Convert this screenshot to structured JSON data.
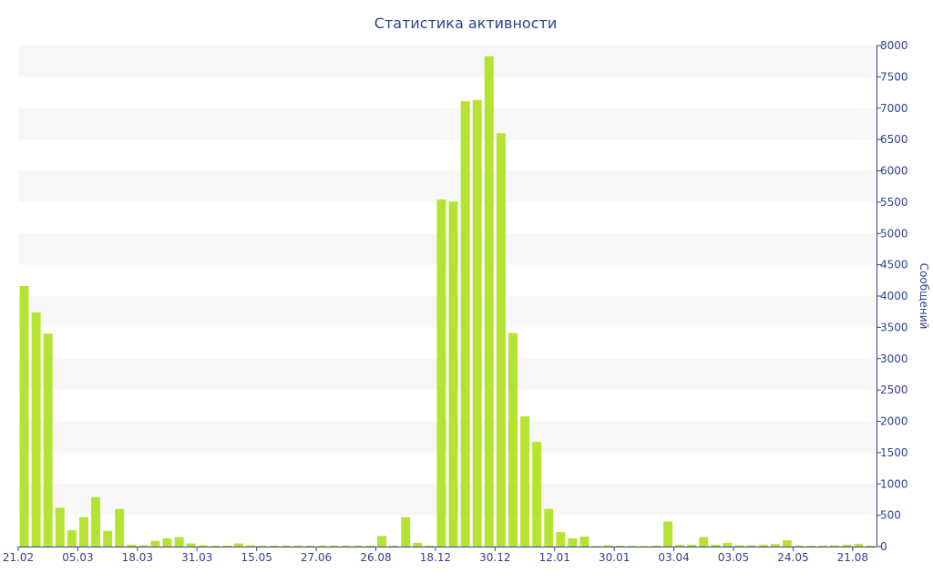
{
  "chart_data": {
    "type": "bar",
    "title": "Статистика активности",
    "ylabel": "Сообщений",
    "y_axis_side": "right",
    "ylim": [
      0,
      8000
    ],
    "yticks": [
      0,
      500,
      1000,
      1500,
      2000,
      2500,
      3000,
      3500,
      4000,
      4500,
      5000,
      5500,
      6000,
      6500,
      7000,
      7500,
      8000
    ],
    "x_tick_labels": [
      {
        "index": 0,
        "label": "21.02"
      },
      {
        "index": 5,
        "label": "05.03"
      },
      {
        "index": 10,
        "label": "18.03"
      },
      {
        "index": 15,
        "label": "31.03"
      },
      {
        "index": 20,
        "label": "15.05"
      },
      {
        "index": 25,
        "label": "27.06"
      },
      {
        "index": 30,
        "label": "26.08"
      },
      {
        "index": 35,
        "label": "18.12"
      },
      {
        "index": 40,
        "label": "30.12"
      },
      {
        "index": 45,
        "label": "12.01"
      },
      {
        "index": 50,
        "label": "30.01"
      },
      {
        "index": 55,
        "label": "03.04"
      },
      {
        "index": 60,
        "label": "03.05"
      },
      {
        "index": 65,
        "label": "24.05"
      },
      {
        "index": 70,
        "label": "21.08"
      }
    ],
    "values": [
      4160,
      3740,
      3400,
      620,
      260,
      470,
      790,
      250,
      600,
      30,
      20,
      90,
      130,
      150,
      50,
      20,
      15,
      15,
      50,
      20,
      15,
      15,
      15,
      15,
      15,
      15,
      15,
      15,
      15,
      15,
      170,
      15,
      470,
      60,
      15,
      5540,
      5510,
      7110,
      7130,
      7830,
      6600,
      3410,
      2080,
      1670,
      600,
      230,
      130,
      160,
      10,
      20,
      15,
      10,
      10,
      15,
      400,
      30,
      30,
      150,
      30,
      60,
      20,
      20,
      30,
      40,
      100,
      15,
      15,
      15,
      20,
      30,
      40,
      15
    ],
    "bar_color": "#b5e332",
    "band_color": "#f7f7f7",
    "axis_color": "#34418a",
    "grid": "alternating-bands"
  }
}
